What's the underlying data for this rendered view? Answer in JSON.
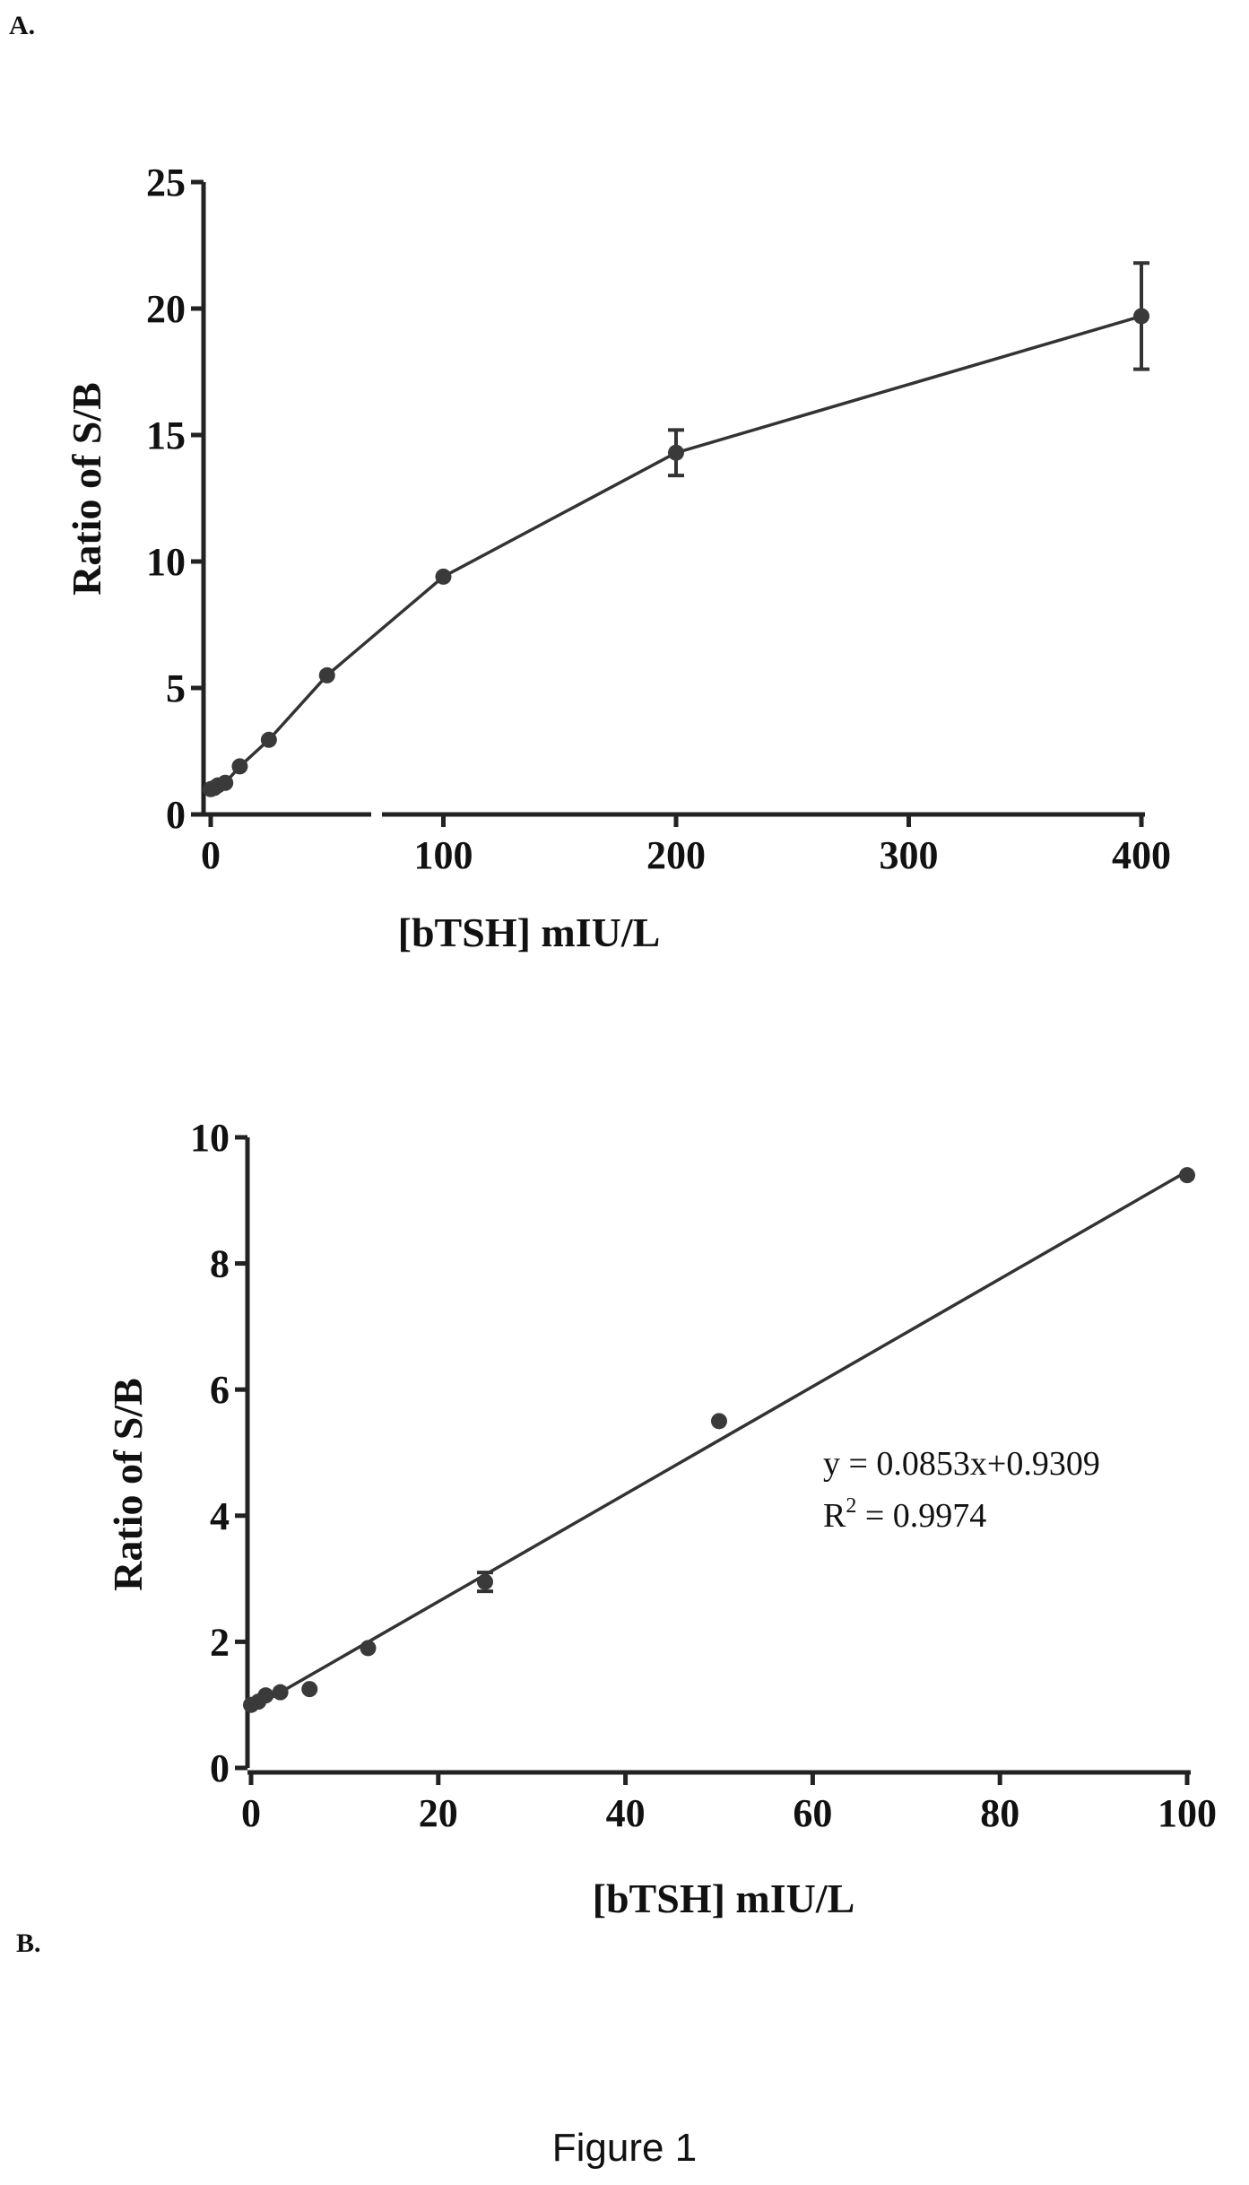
{
  "panel_labels": {
    "a": "A.",
    "b": "B."
  },
  "figure_caption": "Figure 1",
  "chart_data": [
    {
      "type": "line",
      "panel": "A.",
      "title": "",
      "xlabel": "[bTSH] mIU/L",
      "ylabel": "Ratio of S/B",
      "xlim": [
        0,
        400
      ],
      "ylim": [
        0,
        25
      ],
      "x_axis_break": true,
      "x_ticks": [
        "0",
        "100",
        "200",
        "300",
        "400"
      ],
      "y_ticks": [
        "0",
        "5",
        "10",
        "15",
        "20",
        "25"
      ],
      "grid": false,
      "series": [
        {
          "x": [
            0,
            1.5625,
            3.125,
            6.25,
            12.5,
            25,
            50,
            100,
            200,
            400
          ],
          "y": [
            1.0,
            1.05,
            1.15,
            1.25,
            1.9,
            2.95,
            5.5,
            9.4,
            14.3,
            19.7
          ],
          "error": [
            0,
            0,
            0,
            0,
            0.05,
            0.1,
            0.05,
            0.1,
            0.9,
            2.1
          ]
        }
      ]
    },
    {
      "type": "scatter",
      "panel": "B.",
      "title": "",
      "xlabel": "[bTSH] mIU/L",
      "ylabel": "Ratio of S/B",
      "xlim": [
        0,
        100
      ],
      "ylim": [
        0,
        10
      ],
      "x_ticks": [
        "0",
        "20",
        "40",
        "60",
        "80",
        "100"
      ],
      "y_ticks": [
        "0",
        "2",
        "4",
        "6",
        "8",
        "10"
      ],
      "grid": false,
      "series": [
        {
          "x": [
            0,
            0.78,
            1.5625,
            3.125,
            6.25,
            12.5,
            25,
            50,
            100
          ],
          "y": [
            1.0,
            1.05,
            1.15,
            1.2,
            1.25,
            1.9,
            2.95,
            5.5,
            9.4
          ],
          "error": [
            0,
            0,
            0,
            0,
            0,
            0,
            0.15,
            0,
            0
          ]
        }
      ],
      "fit_line": {
        "slope": 0.0853,
        "intercept": 0.9309,
        "x_range": [
          0,
          100
        ]
      },
      "annotations": [
        "y = 0.0853x+0.9309",
        "R",
        "2",
        " = 0.9974"
      ]
    }
  ]
}
